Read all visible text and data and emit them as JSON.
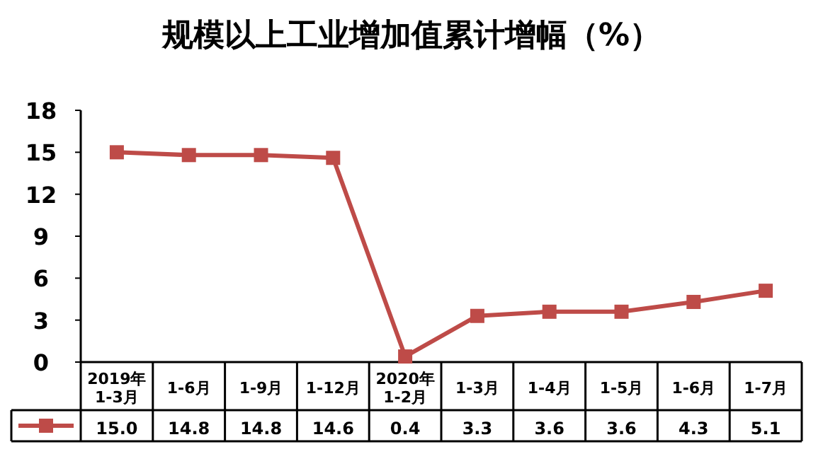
{
  "chart_data": {
    "type": "line",
    "title": "规模以上工业增加值累计增幅（%）",
    "categories": [
      "2019年\n1-3月",
      "1-6月",
      "1-9月",
      "1-12月",
      "2020年\n1-2月",
      "1-3月",
      "1-4月",
      "1-5月",
      "1-6月",
      "1-7月"
    ],
    "series": [
      {
        "color": "#be4b48",
        "values": [
          15.0,
          14.8,
          14.8,
          14.6,
          0.4,
          3.3,
          3.6,
          3.6,
          4.3,
          5.1
        ],
        "value_labels": [
          "15.0",
          "14.8",
          "14.8",
          "14.6",
          "0.4",
          "3.3",
          "3.6",
          "3.6",
          "4.3",
          "5.1"
        ]
      }
    ],
    "ylim": [
      0,
      18
    ],
    "yticks": [
      0,
      3,
      6,
      9,
      12,
      15,
      18
    ],
    "grid": false,
    "marker": "square",
    "line_style": "solid"
  }
}
